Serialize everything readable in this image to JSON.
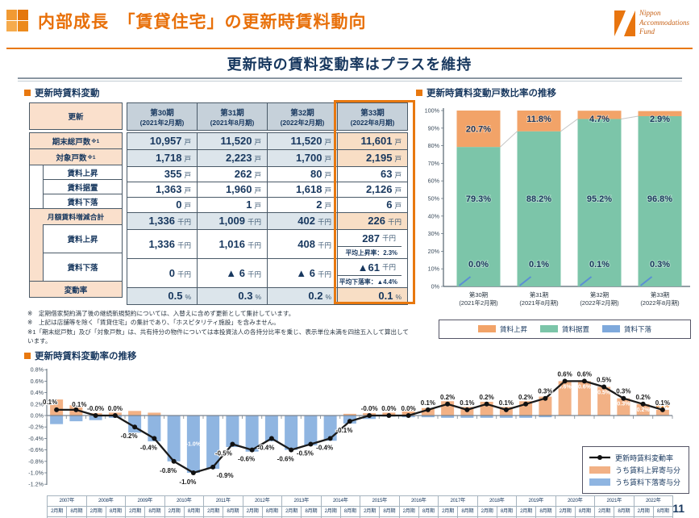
{
  "header": {
    "title": "内部成長　「賃貸住宅」の更新時賃料動向",
    "logo": {
      "line1": "Nippon",
      "line2": "Accommodations",
      "line3": "Fund"
    }
  },
  "subtitle": "更新時の賃料変動率はプラスを維持",
  "colors": {
    "accent_orange": "#E8780F",
    "navy": "#17375E",
    "bar_orange": "#F2A368",
    "bar_green": "#7CC5A9",
    "bar_blue": "#7FA9DC",
    "contrib_orange": "#F2B185",
    "contrib_blue": "#8FB5E1"
  },
  "left": {
    "heading": "更新時賃料変動",
    "corner_label": "更新",
    "columns": [
      {
        "term": "第30期",
        "date": "(2021年2月期)"
      },
      {
        "term": "第31期",
        "date": "(2021年8月期)"
      },
      {
        "term": "第32期",
        "date": "(2022年2月期)"
      },
      {
        "term": "第33期",
        "date": "(2022年8月期)"
      }
    ],
    "rows": {
      "total_units": {
        "label": "期末総戸数",
        "sup": "※1",
        "unit": "戸",
        "values": [
          "10,957",
          "11,520",
          "11,520",
          "11,601"
        ]
      },
      "target_units": {
        "label": "対象戸数",
        "sup": "※1",
        "unit": "戸",
        "values": [
          "1,718",
          "2,223",
          "1,700",
          "2,195"
        ]
      },
      "units_up": {
        "label": "賃料上昇",
        "unit": "戸",
        "values": [
          "355",
          "262",
          "80",
          "63"
        ]
      },
      "units_flat": {
        "label": "賃料据置",
        "unit": "戸",
        "values": [
          "1,363",
          "1,960",
          "1,618",
          "2,126"
        ]
      },
      "units_down": {
        "label": "賃料下落",
        "unit": "戸",
        "values": [
          "0",
          "1",
          "2",
          "6"
        ]
      },
      "monthly_total": {
        "label": "月額賃料増減合計",
        "unit": "千円",
        "values": [
          "1,336",
          "1,009",
          "402",
          "226"
        ]
      },
      "monthly_up": {
        "label": "賃料上昇",
        "unit": "千円",
        "values": [
          "1,336",
          "1,016",
          "408",
          "287"
        ],
        "extra": "平均上昇率：2.3%"
      },
      "monthly_down": {
        "label": "賃料下落",
        "unit": "千円",
        "values": [
          "0",
          "▲ 6",
          "▲ 6",
          "▲61"
        ],
        "extra": "平均下落率：▲4.4%"
      },
      "change_rate": {
        "label": "変動率",
        "unit": "%",
        "values": [
          "0.5",
          "0.3",
          "0.2",
          "0.1"
        ]
      }
    },
    "footnotes": [
      "※　定期借家契約満了後の継続新規契約については、入替えに含めず更新として集計しています。",
      "※　上記は店舗等を除く「賃貸住宅」の集計であり、「ホスピタリティ施設」を含みません。",
      "※1「期末総戸数」及び「対象戸数」は、共有持分の物件については本投資法人の各持分比率を乗じ、表示単位未満を四捨五入して算出しています。"
    ]
  },
  "chart_data": [
    {
      "type": "bar",
      "stacked": true,
      "title": "更新時賃料変動戸数比率の推移",
      "categories": [
        "第30期|(2021年2月期)",
        "第31期|(2021年8月期)",
        "第32期|(2022年2月期)",
        "第33期|(2022年8月期)"
      ],
      "series": [
        {
          "name": "賃料上昇",
          "color": "#F2A368",
          "values": [
            20.7,
            11.8,
            4.7,
            2.9
          ]
        },
        {
          "name": "賃料据置",
          "color": "#7CC5A9",
          "values": [
            79.3,
            88.2,
            95.2,
            96.8
          ]
        },
        {
          "name": "賃料下落",
          "color": "#7FA9DC",
          "values": [
            0.0,
            0.1,
            0.1,
            0.3
          ]
        }
      ],
      "ylim": [
        0,
        100
      ],
      "ytick_step": 10,
      "grid": false,
      "legend_position": "bottom"
    },
    {
      "type": "line+bar",
      "title": "更新時賃料変動率の推移",
      "ylim": [
        -1.2,
        0.8
      ],
      "ytick_step": 0.2,
      "x_years": [
        "2007年",
        "2008年",
        "2009年",
        "2010年",
        "2011年",
        "2012年",
        "2013年",
        "2014年",
        "2015年",
        "2016年",
        "2017年",
        "2018年",
        "2019年",
        "2020年",
        "2021年",
        "2022年"
      ],
      "x_terms": [
        "2月期",
        "8月期"
      ],
      "x_periods": [
        "第2期",
        "第3期",
        "第4期",
        "第5期",
        "第6期",
        "第7期",
        "第8期",
        "第9期",
        "第10期",
        "第11期",
        "第12期",
        "第13期",
        "第14期",
        "第15期",
        "第16期",
        "第17期",
        "第18期",
        "第19期",
        "第20期",
        "第21期",
        "第22期",
        "第23期",
        "第24期",
        "第25期",
        "第26期",
        "第27期",
        "第28期",
        "第29期",
        "第30期",
        "第31期",
        "第32期",
        "第33期"
      ],
      "line": {
        "name": "更新時賃料変動率",
        "color": "#1A1A1A",
        "values": [
          0.1,
          0.1,
          0.0,
          0.0,
          -0.2,
          -0.4,
          -0.8,
          -1.0,
          -0.9,
          -0.5,
          -0.6,
          -0.4,
          -0.6,
          -0.5,
          -0.4,
          -0.1,
          0.0,
          0.0,
          0.0,
          0.1,
          0.2,
          0.1,
          0.2,
          0.1,
          0.2,
          0.3,
          0.6,
          0.6,
          0.5,
          0.3,
          0.2,
          0.1
        ],
        "labels": [
          "0.1%",
          "0.1%",
          "-0.0%",
          "0.0%",
          "-0.2%",
          "-0.4%",
          "-0.8%",
          "-1.0%",
          "-0.9%",
          "-0.5%",
          "-0.6%",
          "-0.4%",
          "-0.6%",
          "-0.5%",
          "-0.4%",
          "-0.1%",
          "-0.0%",
          "0.0%",
          "0.0%",
          "0.1%",
          "0.2%",
          "0.1%",
          "0.2%",
          "0.1%",
          "0.2%",
          "0.3%",
          "0.6%",
          "0.6%",
          "0.5%",
          "0.3%",
          "0.2%",
          "0.1%"
        ]
      },
      "bars_up": {
        "name": "うち賃料上昇寄与分",
        "color": "#F2B185",
        "values": [
          0.28,
          0.18,
          0.04,
          0.05,
          0.08,
          0.05,
          0,
          0,
          0,
          0,
          0,
          0,
          0,
          0,
          0,
          0.03,
          0.04,
          0.05,
          0.07,
          0.13,
          0.25,
          0.15,
          0.24,
          0.15,
          0.25,
          0.33,
          0.6,
          0.6,
          0.5,
          0.3,
          0.2,
          0.1
        ]
      },
      "bars_down": {
        "name": "うち賃料下落寄与分",
        "color": "#8FB5E1",
        "values": [
          -0.15,
          -0.1,
          -0.08,
          -0.04,
          -0.3,
          -0.45,
          -0.8,
          -1.0,
          -0.93,
          -0.55,
          -0.63,
          -0.45,
          -0.6,
          -0.52,
          -0.44,
          -0.14,
          -0.06,
          -0.02,
          -0.03,
          -0.03,
          -0.04,
          -0.04,
          -0.04,
          -0.04,
          -0.04,
          -0.03,
          0,
          0,
          0,
          0,
          0,
          0
        ]
      },
      "bar_value_labels": [
        {
          "index": 7,
          "text": "-1.0%",
          "pos": "center-down"
        },
        {
          "index": 26,
          "text": "0.6%",
          "pos": "inside-up"
        },
        {
          "index": 27,
          "text": "0.6%",
          "pos": "inside-up"
        },
        {
          "index": 28,
          "text": "0.5%",
          "pos": "inside-up"
        },
        {
          "index": 29,
          "text": "0.3%",
          "pos": "inside-up"
        },
        {
          "index": 30,
          "text": "0.2%",
          "pos": "inside-up"
        },
        {
          "index": 31,
          "text": "0.1%",
          "pos": "above-up"
        }
      ]
    }
  ],
  "page_number": "11"
}
